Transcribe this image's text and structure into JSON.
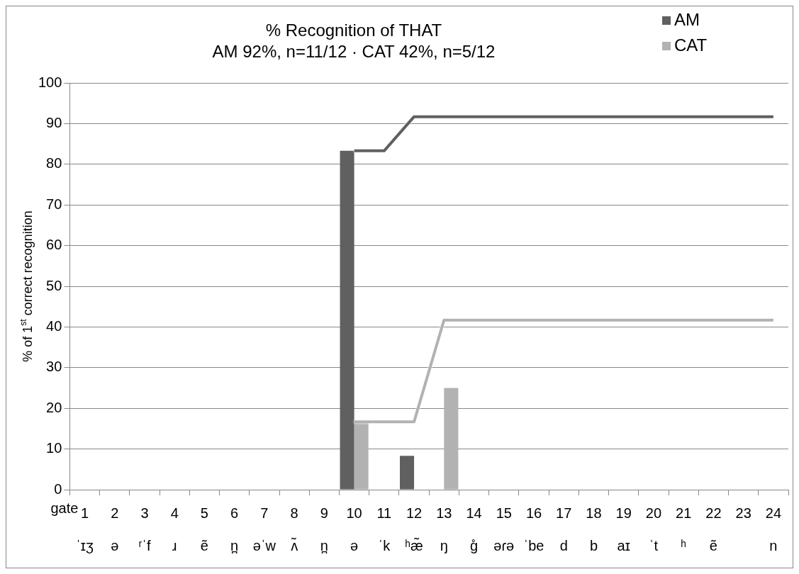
{
  "chart_data": {
    "type": "bar",
    "title": "% Recognition of THAT\nAM 92%, n=11/12 · CAT 42%, n=5/12",
    "xlabel": "gate",
    "ylabel": "% of 1$^{st}$ correct recognition",
    "categories": [
      "1\nˈɪʒ",
      "2\nə",
      "3\nʳˈf",
      "4\nɹ",
      "5\nẽ",
      "6\nn̪",
      "7\nəˈw",
      "8\nʌ̃",
      "9\nn̪",
      "10\nə",
      "11\nˈk",
      "12\nʰæ̃",
      "13\nŋ",
      "14\ng̊",
      "15\nəɾə",
      "16\nˈbe",
      "17\nd",
      "18\nb",
      "19\naɪ",
      "20\nˈt",
      "21\nʰ",
      "22\nẽ",
      "23\n",
      "24\nn"
    ],
    "series": [
      {
        "name": "AM",
        "color": "#606060",
        "values": [
          0,
          0,
          0,
          0,
          0,
          0,
          0,
          0,
          0,
          83.3,
          0,
          8.3,
          0,
          0,
          0,
          0,
          0,
          0,
          0,
          0,
          0,
          0,
          0,
          0
        ]
      },
      {
        "name": "CAT",
        "color": "#b2b2b2",
        "values": [
          0,
          0,
          0,
          0,
          0,
          0,
          0,
          0,
          0,
          16.7,
          0,
          0,
          25,
          0,
          0,
          0,
          0,
          0,
          0,
          0,
          0,
          0,
          0,
          0
        ]
      },
      {
        "type": "line",
        "color": "#606060",
        "values": [
          null,
          null,
          null,
          null,
          null,
          null,
          null,
          null,
          null,
          83.3,
          83.3,
          91.7,
          91.7,
          91.7,
          91.7,
          91.7,
          91.7,
          91.7,
          91.7,
          91.7,
          91.7,
          91.7,
          91.7,
          91.7
        ]
      },
      {
        "type": "line",
        "color": "#b2b2b2",
        "values": [
          null,
          null,
          null,
          null,
          null,
          null,
          null,
          null,
          null,
          16.7,
          16.7,
          16.7,
          41.7,
          41.7,
          41.7,
          41.7,
          41.7,
          41.7,
          41.7,
          41.7,
          41.7,
          41.7,
          41.7,
          41.7
        ]
      }
    ],
    "ylim": [
      0,
      100
    ],
    "yticks": [
      0,
      10,
      20,
      30,
      40,
      50,
      60,
      70,
      80,
      90,
      100
    ],
    "grid": "y",
    "legend": "top right",
    "marker": "none"
  }
}
